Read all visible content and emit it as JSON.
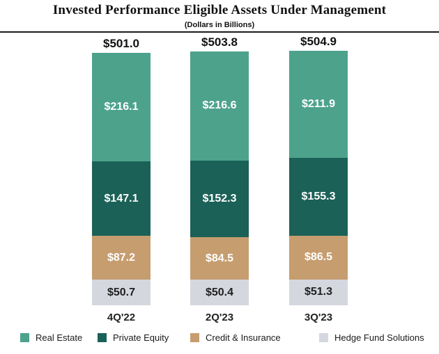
{
  "header": {
    "title": "Invested Performance Eligible Assets Under Management",
    "subtitle": "(Dollars in Billions)"
  },
  "chart_data": {
    "type": "bar",
    "stacked": true,
    "title": "Invested Performance Eligible Assets Under Management",
    "subtitle": "(Dollars in Billions)",
    "value_prefix": "$",
    "categories": [
      "4Q'22",
      "2Q'23",
      "3Q'23"
    ],
    "totals": [
      501.0,
      503.8,
      504.9
    ],
    "total_labels": [
      "$501.0",
      "$503.8",
      "$504.9"
    ],
    "series": [
      {
        "name": "Real Estate",
        "color": "#4DA28C",
        "label_color": "#ffffff",
        "values": [
          216.1,
          216.6,
          211.9
        ]
      },
      {
        "name": "Private Equity",
        "color": "#1B6157",
        "label_color": "#ffffff",
        "values": [
          147.1,
          152.3,
          155.3
        ]
      },
      {
        "name": "Credit & Insurance",
        "color": "#C69D6F",
        "label_color": "#ffffff",
        "values": [
          87.2,
          84.5,
          86.5
        ]
      },
      {
        "name": "Hedge Fund Solutions",
        "color": "#D4D7DE",
        "label_color": "#1f1f1f",
        "values": [
          50.7,
          50.4,
          51.3
        ]
      }
    ],
    "legend_position": "bottom",
    "grid": false,
    "axis_ticks_visible": false
  },
  "legend": {
    "items": [
      {
        "label": "Real Estate",
        "color": "#4DA28C"
      },
      {
        "label": "Private Equity",
        "color": "#1B6157"
      },
      {
        "label": "Credit & Insurance",
        "color": "#C69D6F"
      },
      {
        "label": "Hedge Fund Solutions",
        "color": "#D4D7DE"
      }
    ]
  }
}
